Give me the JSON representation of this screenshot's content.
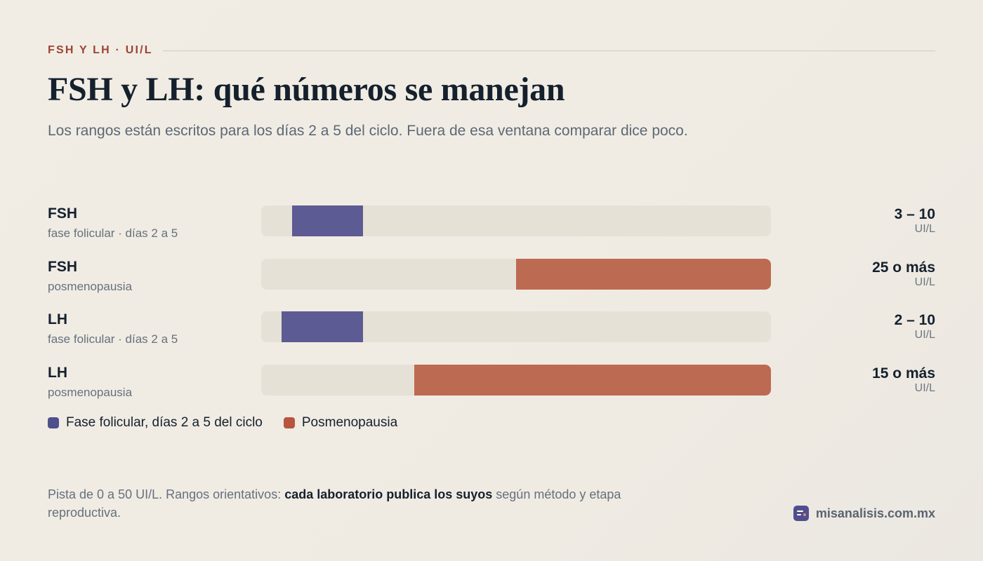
{
  "header": {
    "eyebrow": "FSH Y LH · UI/L",
    "title": "FSH y LH: qué números se manejan",
    "subtitle": "Los rangos están escritos para los días 2 a 5 del ciclo. Fuera de esa ventana comparar dice poco."
  },
  "colors": {
    "folicular": "#5c5b93",
    "posmenopausia": "#bd6a52",
    "legend_folicular": "#4f4f8e",
    "legend_posmenopausia": "#b8553e",
    "track": "#e5e1d6",
    "brand": "#4f4f8e"
  },
  "chart_data": {
    "type": "bar",
    "title": "FSH y LH: qué números se manejan",
    "xlim": [
      0,
      50
    ],
    "unit": "UI/L",
    "series": [
      {
        "name": "Fase folicular, días 2 a 5 del ciclo",
        "rows": [
          0,
          2
        ]
      },
      {
        "name": "Posmenopausia",
        "rows": [
          1,
          3
        ]
      }
    ],
    "rows": [
      {
        "name": "FSH",
        "sub": "fase folicular · días 2 a 5",
        "low": 3,
        "high": 10,
        "open_end": false,
        "series": "folicular",
        "value_label": "3 – 10",
        "unit": "UI/L"
      },
      {
        "name": "FSH",
        "sub": "posmenopausia",
        "low": 25,
        "high": 50,
        "open_end": true,
        "series": "posmenopausia",
        "value_label": "25 o más",
        "unit": "UI/L"
      },
      {
        "name": "LH",
        "sub": "fase folicular · días 2 a 5",
        "low": 2,
        "high": 10,
        "open_end": false,
        "series": "folicular",
        "value_label": "2 – 10",
        "unit": "UI/L"
      },
      {
        "name": "LH",
        "sub": "posmenopausia",
        "low": 15,
        "high": 50,
        "open_end": true,
        "series": "posmenopausia",
        "value_label": "15 o más",
        "unit": "UI/L"
      }
    ]
  },
  "legend": {
    "folicular": "Fase folicular, días 2 a 5 del ciclo",
    "posmenopausia": "Posmenopausia"
  },
  "footnote": {
    "part1": "Pista de 0 a 50 UI/L. Rangos orientativos: ",
    "bold": "cada laboratorio publica los suyos",
    "part2": " según método y etapa reproductiva."
  },
  "brand": {
    "icon": "chart-lines-icon",
    "text": "misanalisis.com.mx"
  }
}
